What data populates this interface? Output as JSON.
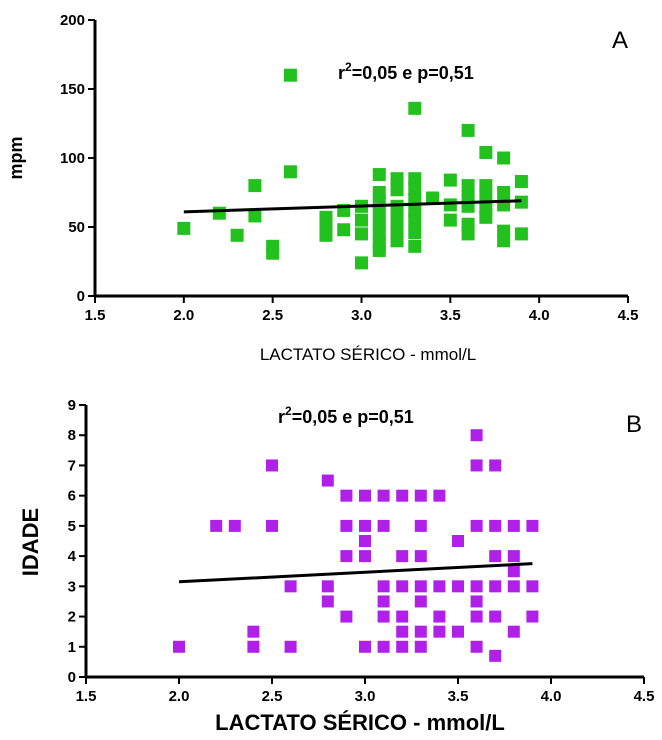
{
  "chart_data": [
    {
      "type": "scatter",
      "panel_label": "A",
      "annotation": {
        "r": "r",
        "sup": "2",
        "rest": "=0,05 e p=0,51"
      },
      "xlabel": "LACTATO SÉRICO - mmol/L",
      "ylabel": "mpm",
      "xlim": [
        1.5,
        4.5
      ],
      "ylim": [
        0,
        200
      ],
      "xticks": [
        "1.5",
        "2.0",
        "2.5",
        "3.0",
        "3.5",
        "4.0",
        "4.5"
      ],
      "yticks": [
        "0",
        "50",
        "100",
        "150",
        "200"
      ],
      "color": "#22c11e",
      "regression": {
        "x": [
          2.0,
          3.9
        ],
        "y": [
          61,
          69
        ]
      },
      "points": [
        [
          2.0,
          49
        ],
        [
          2.2,
          60
        ],
        [
          2.3,
          44
        ],
        [
          2.4,
          80
        ],
        [
          2.4,
          58
        ],
        [
          2.5,
          36
        ],
        [
          2.5,
          31
        ],
        [
          2.6,
          160
        ],
        [
          2.6,
          90
        ],
        [
          2.8,
          57
        ],
        [
          2.8,
          50
        ],
        [
          2.8,
          44
        ],
        [
          2.9,
          62
        ],
        [
          2.9,
          48
        ],
        [
          3.0,
          65
        ],
        [
          3.0,
          55
        ],
        [
          3.0,
          45
        ],
        [
          3.0,
          24
        ],
        [
          3.1,
          88
        ],
        [
          3.1,
          75
        ],
        [
          3.1,
          68
        ],
        [
          3.1,
          60
        ],
        [
          3.1,
          52
        ],
        [
          3.1,
          45
        ],
        [
          3.1,
          38
        ],
        [
          3.1,
          33
        ],
        [
          3.2,
          85
        ],
        [
          3.2,
          77
        ],
        [
          3.2,
          65
        ],
        [
          3.2,
          57
        ],
        [
          3.2,
          48
        ],
        [
          3.2,
          40
        ],
        [
          3.3,
          136
        ],
        [
          3.3,
          85
        ],
        [
          3.3,
          78
        ],
        [
          3.3,
          70
        ],
        [
          3.3,
          62
        ],
        [
          3.3,
          55
        ],
        [
          3.3,
          46
        ],
        [
          3.3,
          36
        ],
        [
          3.4,
          71
        ],
        [
          3.5,
          84
        ],
        [
          3.5,
          66
        ],
        [
          3.5,
          55
        ],
        [
          3.6,
          120
        ],
        [
          3.6,
          80
        ],
        [
          3.6,
          72
        ],
        [
          3.6,
          65
        ],
        [
          3.6,
          52
        ],
        [
          3.6,
          45
        ],
        [
          3.7,
          104
        ],
        [
          3.7,
          80
        ],
        [
          3.7,
          72
        ],
        [
          3.7,
          64
        ],
        [
          3.7,
          57
        ],
        [
          3.8,
          100
        ],
        [
          3.8,
          75
        ],
        [
          3.8,
          66
        ],
        [
          3.8,
          47
        ],
        [
          3.8,
          40
        ],
        [
          3.9,
          83
        ],
        [
          3.9,
          68
        ],
        [
          3.9,
          45
        ]
      ]
    },
    {
      "type": "scatter",
      "panel_label": "B",
      "annotation": {
        "r": "r",
        "sup": "2",
        "rest": "=0,05 e p=0,51"
      },
      "xlabel": "LACTATO SÉRICO - mmol/L",
      "ylabel": "IDADE",
      "xlim": [
        1.5,
        4.5
      ],
      "ylim": [
        0,
        9
      ],
      "xticks": [
        "1.5",
        "2.0",
        "2.5",
        "3.0",
        "3.5",
        "4.0",
        "4.5"
      ],
      "yticks": [
        "0",
        "1",
        "2",
        "3",
        "4",
        "5",
        "6",
        "7",
        "8",
        "9"
      ],
      "color": "#b020e8",
      "regression": {
        "x": [
          2.0,
          3.9
        ],
        "y": [
          3.15,
          3.75
        ]
      },
      "points": [
        [
          2.0,
          1
        ],
        [
          2.2,
          5
        ],
        [
          2.3,
          5
        ],
        [
          2.4,
          1.5
        ],
        [
          2.4,
          1
        ],
        [
          2.5,
          7
        ],
        [
          2.5,
          5
        ],
        [
          2.6,
          3
        ],
        [
          2.6,
          1
        ],
        [
          2.8,
          6.5
        ],
        [
          2.8,
          3
        ],
        [
          2.8,
          2.5
        ],
        [
          2.9,
          6
        ],
        [
          2.9,
          5
        ],
        [
          2.9,
          4
        ],
        [
          2.9,
          2
        ],
        [
          3.0,
          6
        ],
        [
          3.0,
          5
        ],
        [
          3.0,
          4.5
        ],
        [
          3.0,
          4
        ],
        [
          3.0,
          1
        ],
        [
          3.1,
          6
        ],
        [
          3.1,
          5
        ],
        [
          3.1,
          3
        ],
        [
          3.1,
          2.5
        ],
        [
          3.1,
          2
        ],
        [
          3.1,
          1
        ],
        [
          3.2,
          6
        ],
        [
          3.2,
          4
        ],
        [
          3.2,
          3
        ],
        [
          3.2,
          2
        ],
        [
          3.2,
          1.5
        ],
        [
          3.2,
          1
        ],
        [
          3.3,
          6
        ],
        [
          3.3,
          5
        ],
        [
          3.3,
          4
        ],
        [
          3.3,
          3
        ],
        [
          3.3,
          2.5
        ],
        [
          3.3,
          1.5
        ],
        [
          3.3,
          1
        ],
        [
          3.4,
          6
        ],
        [
          3.4,
          3
        ],
        [
          3.4,
          2
        ],
        [
          3.4,
          1.5
        ],
        [
          3.5,
          4.5
        ],
        [
          3.5,
          3
        ],
        [
          3.5,
          1.5
        ],
        [
          3.6,
          8
        ],
        [
          3.6,
          7
        ],
        [
          3.6,
          5
        ],
        [
          3.6,
          3
        ],
        [
          3.6,
          2.5
        ],
        [
          3.6,
          2
        ],
        [
          3.6,
          1
        ],
        [
          3.7,
          7
        ],
        [
          3.7,
          5
        ],
        [
          3.7,
          4
        ],
        [
          3.7,
          3
        ],
        [
          3.7,
          2
        ],
        [
          3.7,
          0.7
        ],
        [
          3.8,
          5
        ],
        [
          3.8,
          4
        ],
        [
          3.8,
          3.5
        ],
        [
          3.8,
          3
        ],
        [
          3.8,
          1.5
        ],
        [
          3.9,
          5
        ],
        [
          3.9,
          3
        ],
        [
          3.9,
          2
        ]
      ]
    }
  ]
}
